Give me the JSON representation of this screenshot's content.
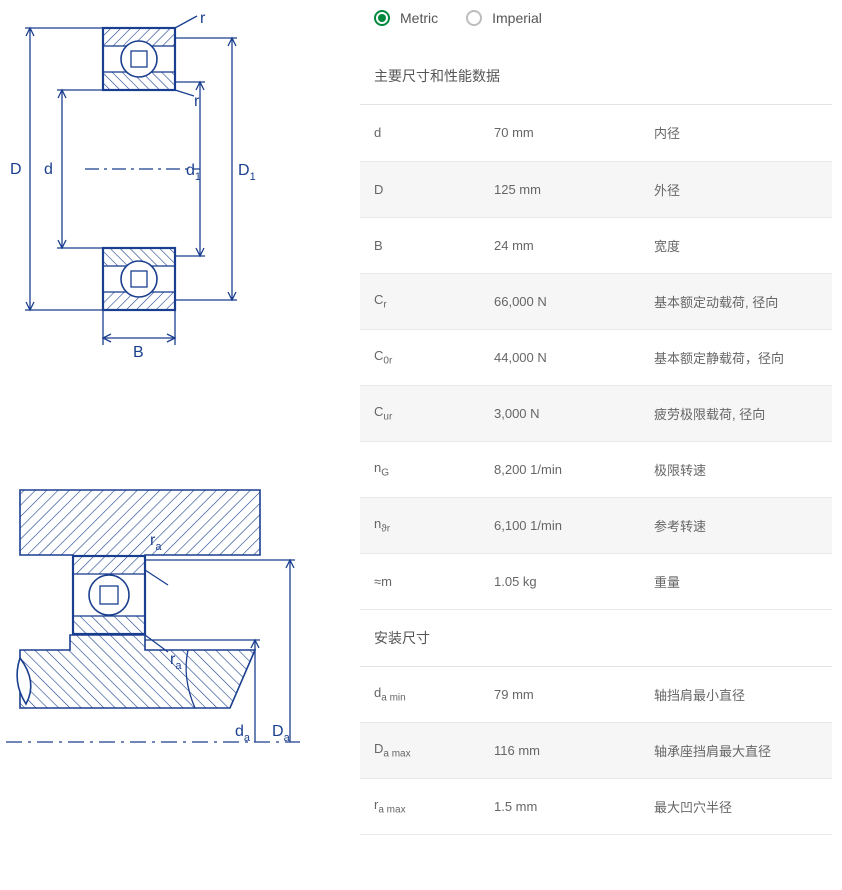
{
  "units": {
    "metric_label": "Metric",
    "imperial_label": "Imperial",
    "selected": "metric"
  },
  "diagrams": {
    "top": {
      "labels": {
        "D": "D",
        "d": "d",
        "d1": "d",
        "d1_sub": "1",
        "D1": "D",
        "D1_sub": "1",
        "r_top": "r",
        "r_inner": "r",
        "B": "B"
      },
      "colors": {
        "stroke": "#1b3f8f",
        "fill_hatch": "#1b3f8f",
        "thin": "#1b3f8f"
      }
    },
    "bottom": {
      "labels": {
        "ra_top": "r",
        "ra_top_sub": "a",
        "ra_bottom": "r",
        "ra_bottom_sub": "a",
        "da": "d",
        "da_sub": "a",
        "Da": "D",
        "Da_sub": "a"
      },
      "colors": {
        "stroke": "#1b3f8f",
        "hatch": "#1b3f8f"
      }
    }
  },
  "sections": {
    "main": {
      "title": "主要尺寸和性能数据",
      "rows": [
        {
          "sym": "d",
          "sub": "",
          "val": "70 mm",
          "desc": "内径"
        },
        {
          "sym": "D",
          "sub": "",
          "val": "125 mm",
          "desc": "外径"
        },
        {
          "sym": "B",
          "sub": "",
          "val": "24 mm",
          "desc": "宽度"
        },
        {
          "sym": "C",
          "sub": "r",
          "val": "66,000 N",
          "desc": "基本额定动载荷, 径向"
        },
        {
          "sym": "C",
          "sub": "0r",
          "val": "44,000 N",
          "desc": "基本额定静载荷，径向"
        },
        {
          "sym": "C",
          "sub": "ur",
          "val": "3,000 N",
          "desc": "疲劳极限载荷, 径向"
        },
        {
          "sym": "n",
          "sub": "G",
          "val": "8,200 1/min",
          "desc": "极限转速"
        },
        {
          "sym": "n",
          "sub": "ϑr",
          "val": "6,100 1/min",
          "desc": "参考转速"
        },
        {
          "sym": "≈m",
          "sub": "",
          "val": "1.05 kg",
          "desc": "重量"
        }
      ]
    },
    "mount": {
      "title": "安装尺寸",
      "rows": [
        {
          "sym": "d",
          "sub": "a min",
          "val": "79 mm",
          "desc": "轴挡肩最小直径"
        },
        {
          "sym": "D",
          "sub": "a max",
          "val": "116 mm",
          "desc": "轴承座挡肩最大直径"
        },
        {
          "sym": "r",
          "sub": "a max",
          "val": "1.5 mm",
          "desc": "最大凹穴半径"
        }
      ]
    }
  },
  "style": {
    "row_alt_bg": "#f6f6f6",
    "border_color": "#e8e8e8",
    "text_color": "#666666",
    "accent_green": "#00893d",
    "diagram_stroke": "#1b3f8f"
  }
}
